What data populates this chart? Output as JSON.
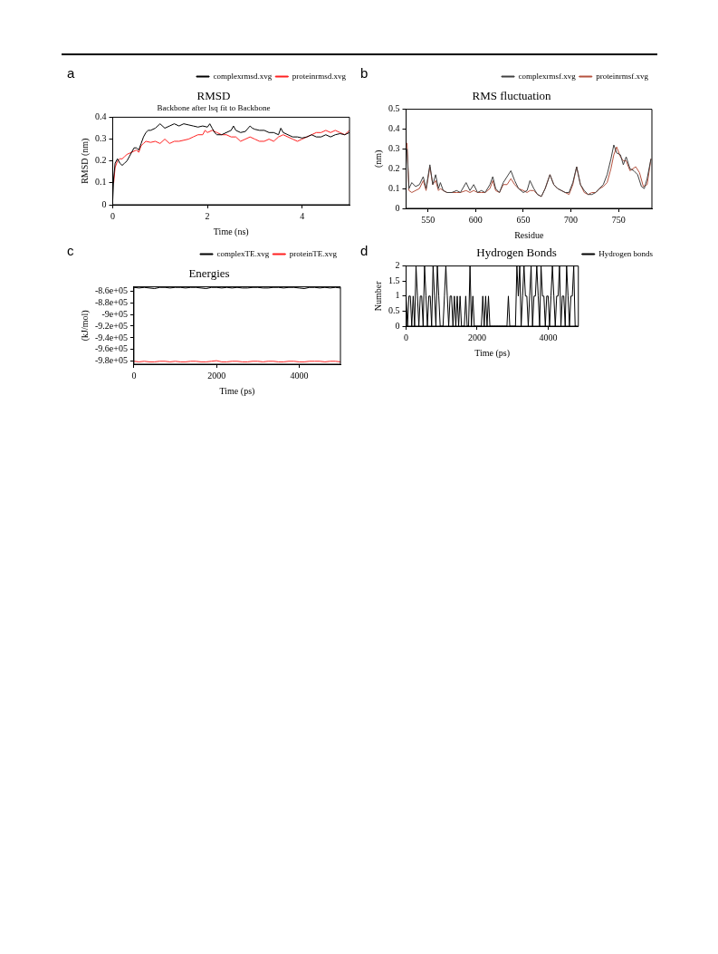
{
  "chart_data": [
    {
      "type": "line",
      "title": "RMSD",
      "subtitle": "Backbone after lsq fit to Backbone",
      "xlabel": "Time (ns)",
      "ylabel": "RMSD (nm)",
      "annotations": [
        "a"
      ],
      "legend": "top right",
      "grid": false,
      "marker": "none",
      "xlim": [
        0,
        5
      ],
      "xticks": [
        0,
        2,
        4
      ],
      "ylim": [
        0,
        0.4
      ],
      "yticks": [
        0,
        0.1,
        0.2,
        0.3,
        0.4
      ],
      "series": [
        {
          "name": "complexrmsd.xvg",
          "color": "#000000",
          "x": [
            0,
            0.02,
            0.05,
            0.1,
            0.15,
            0.2,
            0.25,
            0.3,
            0.35,
            0.4,
            0.45,
            0.5,
            0.55,
            0.6,
            0.65,
            0.7,
            0.75,
            0.8,
            0.9,
            1.0,
            1.1,
            1.2,
            1.3,
            1.4,
            1.5,
            1.6,
            1.7,
            1.8,
            1.9,
            2.0,
            2.05,
            2.1,
            2.15,
            2.2,
            2.3,
            2.4,
            2.5,
            2.55,
            2.6,
            2.7,
            2.8,
            2.9,
            2.95,
            3.0,
            3.1,
            3.2,
            3.3,
            3.4,
            3.5,
            3.55,
            3.6,
            3.7,
            3.8,
            3.9,
            4.0,
            4.1,
            4.2,
            4.3,
            4.4,
            4.5,
            4.6,
            4.7,
            4.8,
            4.9,
            5.0
          ],
          "values": [
            0.02,
            0.12,
            0.19,
            0.21,
            0.19,
            0.18,
            0.19,
            0.2,
            0.22,
            0.24,
            0.26,
            0.26,
            0.25,
            0.28,
            0.31,
            0.33,
            0.34,
            0.34,
            0.35,
            0.37,
            0.35,
            0.36,
            0.37,
            0.36,
            0.37,
            0.365,
            0.36,
            0.355,
            0.36,
            0.355,
            0.37,
            0.35,
            0.33,
            0.32,
            0.32,
            0.33,
            0.34,
            0.36,
            0.34,
            0.33,
            0.335,
            0.36,
            0.35,
            0.345,
            0.34,
            0.34,
            0.33,
            0.33,
            0.32,
            0.35,
            0.33,
            0.32,
            0.31,
            0.31,
            0.305,
            0.31,
            0.32,
            0.31,
            0.31,
            0.32,
            0.31,
            0.32,
            0.325,
            0.32,
            0.33
          ]
        },
        {
          "name": "proteinrmsd.xvg",
          "color": "#ff2020",
          "x": [
            0.02,
            0.05,
            0.1,
            0.15,
            0.2,
            0.25,
            0.3,
            0.4,
            0.5,
            0.55,
            0.6,
            0.65,
            0.7,
            0.8,
            0.9,
            1.0,
            1.1,
            1.2,
            1.3,
            1.4,
            1.5,
            1.6,
            1.7,
            1.8,
            1.9,
            1.95,
            2.0,
            2.1,
            2.2,
            2.3,
            2.4,
            2.5,
            2.6,
            2.7,
            2.8,
            2.9,
            3.0,
            3.1,
            3.2,
            3.3,
            3.4,
            3.5,
            3.6,
            3.7,
            3.8,
            3.9,
            4.0,
            4.1,
            4.2,
            4.3,
            4.4,
            4.5,
            4.6,
            4.7,
            4.8,
            4.9,
            5.0
          ],
          "values": [
            0.1,
            0.17,
            0.2,
            0.21,
            0.21,
            0.22,
            0.23,
            0.24,
            0.25,
            0.24,
            0.27,
            0.28,
            0.29,
            0.285,
            0.29,
            0.28,
            0.3,
            0.28,
            0.29,
            0.29,
            0.295,
            0.3,
            0.31,
            0.32,
            0.32,
            0.34,
            0.33,
            0.34,
            0.33,
            0.32,
            0.32,
            0.31,
            0.31,
            0.29,
            0.3,
            0.31,
            0.3,
            0.29,
            0.29,
            0.3,
            0.29,
            0.31,
            0.32,
            0.31,
            0.3,
            0.29,
            0.3,
            0.31,
            0.32,
            0.33,
            0.33,
            0.34,
            0.33,
            0.34,
            0.33,
            0.32,
            0.34
          ]
        }
      ]
    },
    {
      "type": "line",
      "title": "RMS fluctuation",
      "xlabel": "Residue",
      "ylabel": "(nm)",
      "annotations": [
        "b"
      ],
      "legend": "top right",
      "grid": false,
      "marker": "none",
      "xlim": [
        527,
        785
      ],
      "xticks": [
        550,
        600,
        650,
        700,
        750
      ],
      "ylim": [
        0,
        0.5
      ],
      "yticks": [
        0,
        0.1,
        0.2,
        0.3,
        0.4,
        0.5
      ],
      "series": [
        {
          "name": "complexrmsf.xvg",
          "color": "#404040",
          "x": [
            528,
            530,
            533,
            537,
            541,
            545,
            548,
            552,
            555,
            558,
            561,
            563,
            566,
            570,
            575,
            580,
            584,
            590,
            594,
            598,
            602,
            606,
            610,
            615,
            618,
            621,
            625,
            629,
            633,
            637,
            641,
            645,
            650,
            654,
            657,
            661,
            665,
            669,
            673,
            678,
            682,
            686,
            690,
            694,
            698,
            702,
            706,
            710,
            714,
            718,
            722,
            726,
            730,
            734,
            738,
            742,
            745,
            748,
            752,
            755,
            758,
            762,
            766,
            770,
            774,
            777,
            780,
            784
          ],
          "values": [
            0.3,
            0.1,
            0.13,
            0.11,
            0.12,
            0.16,
            0.1,
            0.22,
            0.12,
            0.17,
            0.1,
            0.13,
            0.09,
            0.08,
            0.08,
            0.09,
            0.08,
            0.13,
            0.09,
            0.12,
            0.08,
            0.09,
            0.08,
            0.12,
            0.16,
            0.1,
            0.08,
            0.13,
            0.16,
            0.19,
            0.14,
            0.1,
            0.08,
            0.09,
            0.14,
            0.1,
            0.07,
            0.06,
            0.1,
            0.17,
            0.12,
            0.1,
            0.09,
            0.08,
            0.08,
            0.13,
            0.21,
            0.12,
            0.09,
            0.07,
            0.07,
            0.08,
            0.1,
            0.12,
            0.17,
            0.25,
            0.32,
            0.28,
            0.27,
            0.22,
            0.26,
            0.2,
            0.19,
            0.17,
            0.11,
            0.1,
            0.15,
            0.25
          ]
        },
        {
          "name": "proteinrmsf.xvg",
          "color": "#b5523f",
          "x": [
            528,
            530,
            533,
            537,
            541,
            545,
            548,
            552,
            555,
            558,
            561,
            563,
            566,
            570,
            575,
            580,
            584,
            590,
            594,
            598,
            602,
            606,
            610,
            615,
            618,
            621,
            625,
            629,
            633,
            637,
            641,
            645,
            650,
            654,
            657,
            661,
            665,
            669,
            673,
            678,
            682,
            686,
            690,
            694,
            698,
            702,
            706,
            710,
            714,
            718,
            722,
            726,
            730,
            734,
            738,
            742,
            745,
            748,
            752,
            755,
            758,
            762,
            768,
            772,
            776,
            780,
            784
          ],
          "values": [
            0.33,
            0.09,
            0.08,
            0.09,
            0.1,
            0.14,
            0.09,
            0.21,
            0.12,
            0.14,
            0.09,
            0.1,
            0.09,
            0.08,
            0.08,
            0.08,
            0.08,
            0.09,
            0.08,
            0.09,
            0.08,
            0.08,
            0.08,
            0.1,
            0.14,
            0.09,
            0.08,
            0.12,
            0.12,
            0.15,
            0.12,
            0.1,
            0.09,
            0.08,
            0.09,
            0.09,
            0.07,
            0.06,
            0.1,
            0.17,
            0.12,
            0.1,
            0.09,
            0.08,
            0.07,
            0.12,
            0.21,
            0.12,
            0.08,
            0.07,
            0.08,
            0.08,
            0.1,
            0.11,
            0.13,
            0.2,
            0.27,
            0.31,
            0.26,
            0.24,
            0.24,
            0.19,
            0.21,
            0.18,
            0.11,
            0.12,
            0.25
          ]
        }
      ]
    },
    {
      "type": "line",
      "title": "Energies",
      "xlabel": "Time (ps)",
      "ylabel": "(kJ/mol)",
      "annotations": [
        "c"
      ],
      "legend": "top right",
      "grid": false,
      "marker": "none",
      "xlim": [
        0,
        5000
      ],
      "xticks": [
        0,
        2000,
        4000
      ],
      "ylim": [
        -985000,
        -853000
      ],
      "yticks": [
        {
          "value": -860000,
          "label": "-8.6e+05"
        },
        {
          "value": -880000,
          "label": "-8.8e+05"
        },
        {
          "value": -900000,
          "label": "-9e+05"
        },
        {
          "value": -920000,
          "label": "-9.2e+05"
        },
        {
          "value": -940000,
          "label": "-9.4e+05"
        },
        {
          "value": -960000,
          "label": "-9.6e+05"
        },
        {
          "value": -980000,
          "label": "-9.8e+05"
        }
      ],
      "series": [
        {
          "name": "complexTE.xvg",
          "color": "#000000",
          "x": [
            0,
            125,
            250,
            375,
            500,
            625,
            750,
            875,
            1000,
            1125,
            1250,
            1375,
            1500,
            1625,
            1750,
            1875,
            2000,
            2125,
            2250,
            2375,
            2500,
            2625,
            2750,
            2875,
            3000,
            3125,
            3250,
            3375,
            3500,
            3625,
            3750,
            3875,
            4000,
            4125,
            4250,
            4375,
            4500,
            4625,
            4750,
            4875,
            5000
          ],
          "values": [
            -854000,
            -855000,
            -854000,
            -855000,
            -856000,
            -854000,
            -854000,
            -855000,
            -854000,
            -854000,
            -855000,
            -854000,
            -854000,
            -855000,
            -856000,
            -854000,
            -854000,
            -855000,
            -854000,
            -855000,
            -854000,
            -855000,
            -855000,
            -854000,
            -854000,
            -855000,
            -855000,
            -854000,
            -854000,
            -855000,
            -854000,
            -854000,
            -855000,
            -856000,
            -854000,
            -854000,
            -855000,
            -854000,
            -855000,
            -854000,
            -855000
          ]
        },
        {
          "name": "proteinTE.xvg",
          "color": "#ff2020",
          "x": [
            0,
            125,
            250,
            375,
            500,
            625,
            750,
            875,
            1000,
            1125,
            1250,
            1375,
            1500,
            1625,
            1750,
            1875,
            2000,
            2125,
            2250,
            2375,
            2500,
            2625,
            2750,
            2875,
            3000,
            3125,
            3250,
            3375,
            3500,
            3625,
            3750,
            3875,
            4000,
            4125,
            4250,
            4375,
            4500,
            4625,
            4750,
            4875,
            5000
          ],
          "values": [
            -980000,
            -981000,
            -980000,
            -981000,
            -981000,
            -980000,
            -980000,
            -981000,
            -980000,
            -981000,
            -981000,
            -980000,
            -980000,
            -981000,
            -981000,
            -980000,
            -979000,
            -981000,
            -981000,
            -980000,
            -980000,
            -981000,
            -981000,
            -980000,
            -980000,
            -981000,
            -980000,
            -980000,
            -981000,
            -981000,
            -980000,
            -980000,
            -981000,
            -981000,
            -980000,
            -980000,
            -980000,
            -981000,
            -980000,
            -980000,
            -981000
          ]
        }
      ]
    },
    {
      "type": "line",
      "title": "Hydrogen Bonds",
      "xlabel": "Time (ps)",
      "ylabel": "Number",
      "annotations": [
        "d"
      ],
      "legend": "right",
      "grid": false,
      "marker": "none",
      "xlim": [
        0,
        4850
      ],
      "xticks": [
        0,
        2000,
        4000
      ],
      "ylim": [
        0,
        2
      ],
      "yticks": [
        0,
        0.5,
        1,
        1.5,
        2
      ],
      "series": [
        {
          "name": "Hydrogen bonds",
          "color": "#000000",
          "x": [
            0,
            40,
            80,
            120,
            160,
            200,
            240,
            280,
            320,
            360,
            400,
            440,
            480,
            520,
            560,
            600,
            640,
            680,
            720,
            760,
            800,
            840,
            880,
            920,
            960,
            1000,
            1040,
            1080,
            1120,
            1160,
            1200,
            1240,
            1280,
            1320,
            1360,
            1400,
            1440,
            1480,
            1520,
            1560,
            1600,
            1640,
            1680,
            1720,
            1760,
            1800,
            1840,
            1880,
            1920,
            1960,
            2000,
            2040,
            2080,
            2120,
            2160,
            2200,
            2240,
            2280,
            2320,
            2360,
            2400,
            2440,
            2480,
            2520,
            2560,
            2600,
            2640,
            2680,
            2720,
            2760,
            2800,
            2840,
            2880,
            2920,
            2960,
            3000,
            3040,
            3080,
            3120,
            3160,
            3200,
            3240,
            3280,
            3320,
            3360,
            3400,
            3440,
            3480,
            3520,
            3560,
            3600,
            3640,
            3680,
            3720,
            3760,
            3800,
            3840,
            3880,
            3920,
            3960,
            4000,
            4040,
            4080,
            4120,
            4160,
            4200,
            4240,
            4280,
            4320,
            4360,
            4400,
            4440,
            4480,
            4520,
            4560,
            4600,
            4640,
            4680,
            4720,
            4760,
            4800
          ],
          "values": [
            1,
            0,
            1,
            1,
            0,
            1,
            0,
            2,
            1,
            0,
            1,
            1,
            0,
            2,
            1,
            0,
            1,
            1,
            0,
            2,
            1,
            0,
            2,
            1,
            0,
            0,
            0,
            1,
            2,
            1,
            0,
            1,
            1,
            0,
            1,
            0,
            1,
            0,
            1,
            0,
            0,
            0,
            1,
            0,
            0,
            2,
            0,
            1,
            0,
            0,
            0,
            0,
            0,
            0,
            1,
            0,
            1,
            0,
            1,
            0,
            0,
            0,
            0,
            0,
            0,
            0,
            0,
            0,
            0,
            0,
            0,
            0,
            1,
            0,
            0,
            0,
            0,
            0,
            2,
            1,
            2,
            0,
            1,
            2,
            1,
            1,
            0,
            1,
            2,
            0,
            1,
            1,
            2,
            1,
            0,
            2,
            1,
            1,
            0,
            1,
            1,
            0,
            1,
            2,
            1,
            0,
            1,
            1,
            2,
            0,
            1,
            1,
            0,
            2,
            1,
            0,
            1,
            1,
            2,
            0,
            0
          ]
        }
      ]
    }
  ]
}
